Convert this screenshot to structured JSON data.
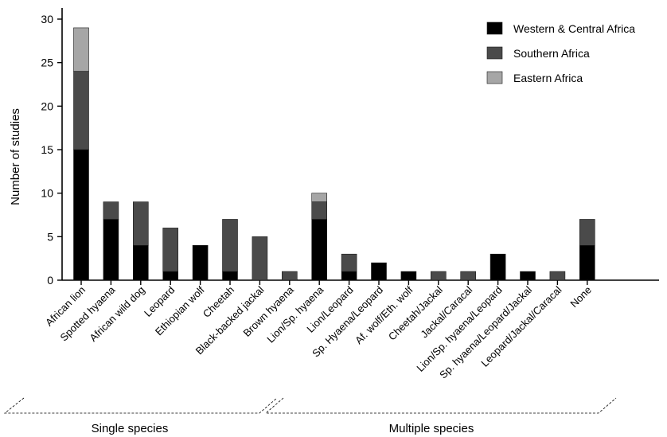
{
  "chart_data": {
    "type": "bar",
    "stacked": true,
    "ylabel": "Number of studies",
    "xlabel": "",
    "ylim": [
      0,
      30
    ],
    "yticks": [
      0,
      5,
      10,
      15,
      20,
      25,
      30
    ],
    "grid": false,
    "legend_position": "top-right",
    "categories": [
      "African lion",
      "Spotted hyaena",
      "African wild dog",
      "Leopard",
      "Ethiopian wolf",
      "Cheetah",
      "Black-backed jackal",
      "Brown hyaena",
      "Lion/Sp. hyaena",
      "Lion/Leopard",
      "Sp. Hyaena/Leopard",
      "Af. wolf/Eth. wolf",
      "Cheetah/Jackal",
      "Jackal/Caracal",
      "Lion/Sp. hyaena/Leopard",
      "Sp. hyaena/Leopard/Jackal",
      "Leopard/Jackal/Caracal",
      "None"
    ],
    "series": [
      {
        "name": "Western & Central Africa",
        "color": "#000000",
        "values": [
          15,
          7,
          4,
          1,
          4,
          1,
          0,
          0,
          7,
          1,
          2,
          1,
          0,
          0,
          3,
          1,
          0,
          4
        ]
      },
      {
        "name": "Southern Africa",
        "color": "#4a4a4a",
        "values": [
          9,
          2,
          5,
          5,
          0,
          6,
          5,
          1,
          2,
          2,
          0,
          0,
          1,
          1,
          0,
          0,
          1,
          3
        ]
      },
      {
        "name": "Eastern Africa",
        "color": "#a6a6a6",
        "values": [
          5,
          0,
          0,
          0,
          0,
          0,
          0,
          0,
          1,
          0,
          0,
          0,
          0,
          0,
          0,
          0,
          0,
          0
        ]
      }
    ],
    "groups": [
      {
        "label": "Single species",
        "from": 0,
        "to": 6
      },
      {
        "label": "Multiple species",
        "from": 7,
        "to": 17
      }
    ]
  }
}
